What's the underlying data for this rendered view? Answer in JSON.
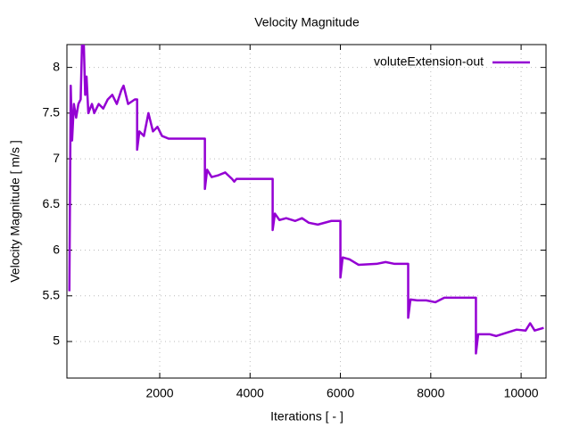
{
  "chart_data": {
    "type": "line",
    "title": "Velocity Magnitude",
    "x_label": "Iterations [ - ]",
    "y_label": "Velocity Magnitude [ m/s ]",
    "x": [
      0,
      30,
      60,
      100,
      150,
      200,
      250,
      280,
      320,
      350,
      380,
      420,
      500,
      550,
      650,
      750,
      850,
      950,
      1050,
      1150,
      1200,
      1300,
      1450,
      1500,
      1500,
      1550,
      1650,
      1750,
      1850,
      1950,
      2050,
      2200,
      3000,
      3000,
      3050,
      3150,
      3300,
      3450,
      3600,
      3650,
      3700,
      4500,
      4500,
      4550,
      4650,
      4800,
      5000,
      5150,
      5300,
      5500,
      5800,
      6000,
      6000,
      6050,
      6200,
      6400,
      6800,
      7000,
      7200,
      7500,
      7500,
      7550,
      7700,
      7900,
      8100,
      8300,
      9000,
      9000,
      9050,
      9300,
      9450,
      9700,
      9900,
      10100,
      10200,
      10300,
      10500
    ],
    "series": [
      {
        "name": "voluteExtension-out",
        "color": "#9400d3",
        "values": [
          5.55,
          7.8,
          7.2,
          7.6,
          7.45,
          7.6,
          7.65,
          8.25,
          8.25,
          7.7,
          7.9,
          7.5,
          7.6,
          7.5,
          7.6,
          7.55,
          7.65,
          7.7,
          7.6,
          7.75,
          7.8,
          7.6,
          7.65,
          7.65,
          7.1,
          7.3,
          7.25,
          7.5,
          7.3,
          7.35,
          7.25,
          7.22,
          7.22,
          6.67,
          6.88,
          6.8,
          6.82,
          6.85,
          6.78,
          6.75,
          6.78,
          6.78,
          6.22,
          6.4,
          6.33,
          6.35,
          6.32,
          6.35,
          6.3,
          6.28,
          6.32,
          6.32,
          5.7,
          5.92,
          5.9,
          5.84,
          5.85,
          5.87,
          5.85,
          5.85,
          5.26,
          5.46,
          5.45,
          5.45,
          5.43,
          5.48,
          5.48,
          4.87,
          5.08,
          5.08,
          5.06,
          5.1,
          5.13,
          5.12,
          5.2,
          5.12,
          5.15
        ]
      }
    ],
    "xlim": [
      0,
      10500
    ],
    "ylim": [
      4.6,
      8.25
    ],
    "xticks": [
      2000,
      4000,
      6000,
      8000,
      10000
    ],
    "yticks": [
      5,
      5.5,
      6,
      6.5,
      7,
      7.5,
      8
    ],
    "grid": true,
    "legend": "top-right"
  }
}
